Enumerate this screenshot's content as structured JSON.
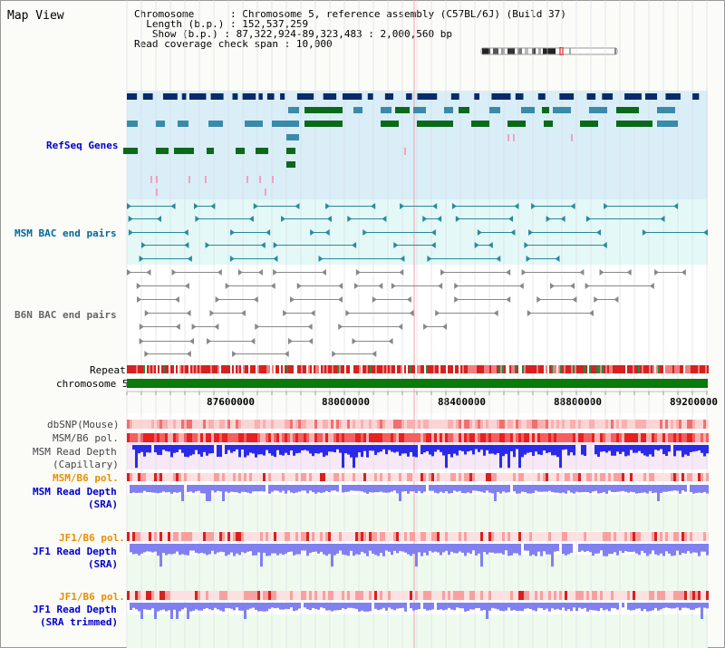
{
  "page": {
    "title": "Map View"
  },
  "info": {
    "chromosome_key": "Chromosome",
    "chromosome_val": "Chromosome 5, reference assembly (C57BL/6J) (Build 37)",
    "length_key": "Length (b.p.)",
    "length_val": "152,537,259",
    "show_key": "Show (b.p.)",
    "show_val": "87,322,924-89,323,483 : 2,000,560 bp",
    "coverage_key": "Read coverage check span",
    "coverage_val": "10,000"
  },
  "tracks": {
    "refseq": "RefSeq Genes",
    "msm_bac": "MSM BAC end pairs",
    "b6n_bac": "B6N BAC end pairs",
    "repeat": "Repeat",
    "chromosome": "chromosome 5",
    "dbsnp": "dbSNP(Mouse)",
    "msm_b6_pol_1": "MSM/B6 pol.",
    "msm_read_depth_cap_1": "MSM Read Depth",
    "msm_read_depth_cap_2": "(Capillary)",
    "msm_b6_pol_2": "MSM/B6 pol.",
    "msm_read_depth_sra_1": "MSM Read Depth",
    "msm_read_depth_sra_2": "(SRA)",
    "jf1_b6_pol_1": "JF1/B6 pol.",
    "jf1_read_depth_1": "JF1 Read Depth",
    "jf1_read_depth_2": "(SRA)",
    "jf1_b6_pol_2": "JF1/B6 pol.",
    "jf1_read_depth_trim_1": "JF1 Read Depth",
    "jf1_read_depth_trim_2": "(SRA trimmed)"
  },
  "axis": {
    "ticks": [
      "87600000",
      "88000000",
      "88400000",
      "88800000",
      "89200000"
    ]
  },
  "colors": {
    "refseq_bg": "#daeef8",
    "msm_bg": "#e4f8f8",
    "gene_dark": "#0a2a6a",
    "gene_teal": "#3a8aaa",
    "gene_green": "#0a6a1a",
    "gene_pink": "#f4a0c0",
    "bac_teal": "#2a8a9a",
    "bac_gray": "#888888",
    "chrom_green": "#0a7a0a",
    "depth_blue": "#2a2ae8",
    "depth_light": "#8080f0",
    "pol_red": "#e83030"
  }
}
